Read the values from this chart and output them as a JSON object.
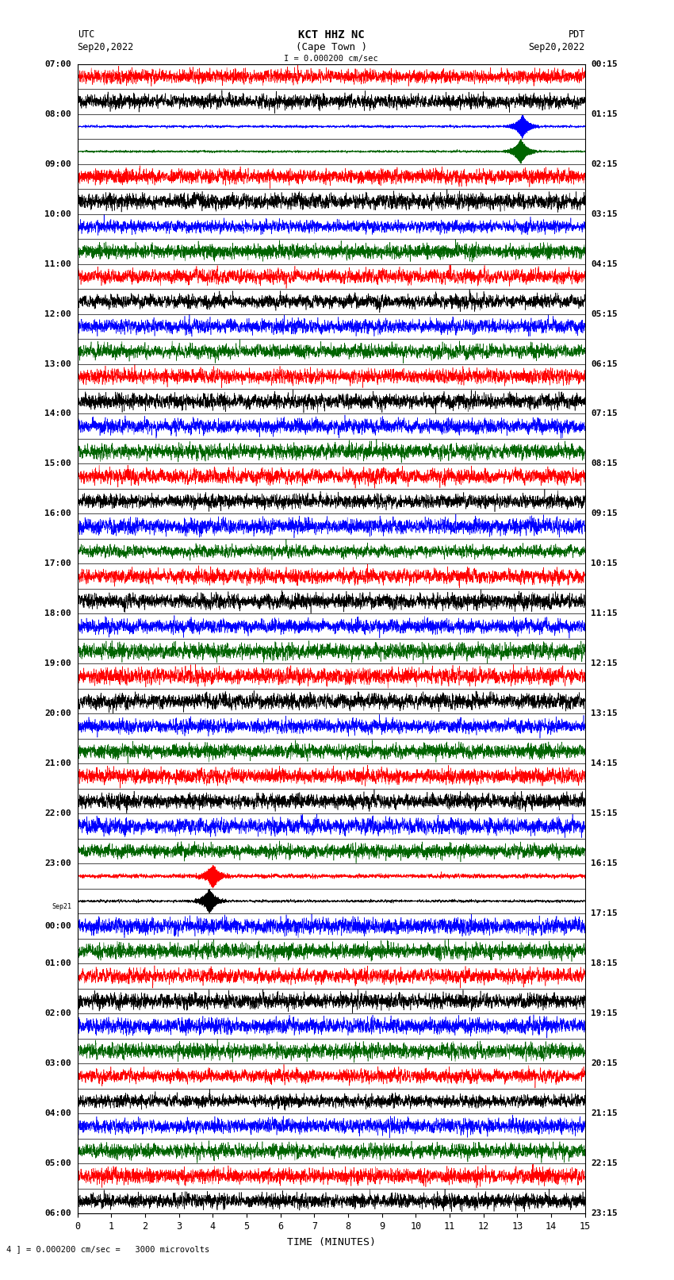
{
  "title_line1": "KCT HHZ NC",
  "title_line2": "(Cape Town )",
  "scale_label": "I = 0.000200 cm/sec",
  "left_header": "UTC",
  "left_date": "Sep20,2022",
  "right_header": "PDT",
  "right_date": "Sep20,2022",
  "bottom_label": "TIME (MINUTES)",
  "bottom_scale": "4 ] = 0.000200 cm/sec =   3000 microvolts",
  "utc_labels": [
    "07:00",
    "08:00",
    "09:00",
    "10:00",
    "11:00",
    "12:00",
    "13:00",
    "14:00",
    "15:00",
    "16:00",
    "17:00",
    "18:00",
    "19:00",
    "20:00",
    "21:00",
    "22:00",
    "23:00",
    "00:00",
    "01:00",
    "02:00",
    "03:00",
    "04:00",
    "05:00",
    "06:00"
  ],
  "sep21_label_index": 17,
  "pdt_labels": [
    "00:15",
    "01:15",
    "02:15",
    "03:15",
    "04:15",
    "05:15",
    "06:15",
    "07:15",
    "08:15",
    "09:15",
    "10:15",
    "11:15",
    "12:15",
    "13:15",
    "14:15",
    "15:15",
    "16:15",
    "17:15",
    "18:15",
    "19:15",
    "20:15",
    "21:15",
    "22:15",
    "23:15"
  ],
  "trace_colors": [
    "black",
    "red",
    "darkgreen",
    "blue"
  ],
  "n_rows": 46,
  "minutes_per_row": 15,
  "fig_width": 8.5,
  "fig_height": 16.13,
  "dpi": 100,
  "seed": 42,
  "spike_events": [
    {
      "row": 12,
      "x": 3.9,
      "amp": 25.0
    },
    {
      "row": 13,
      "x": 4.0,
      "amp": 15.0
    },
    {
      "row": 42,
      "x": 13.1,
      "amp": 30.0
    },
    {
      "row": 43,
      "x": 13.15,
      "amp": 25.0
    }
  ]
}
